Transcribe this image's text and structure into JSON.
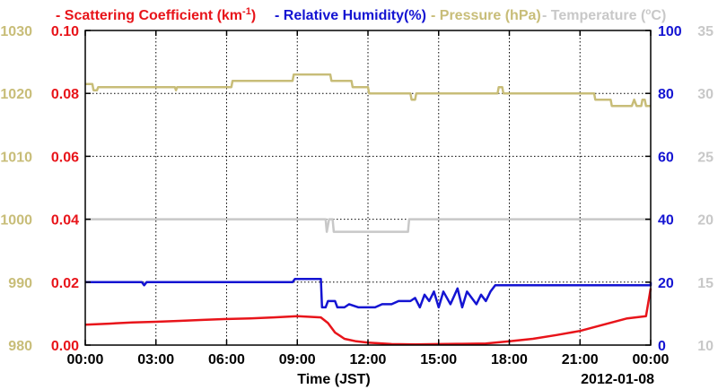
{
  "colors": {
    "scattering": "#e8141a",
    "humidity": "#1414d2",
    "pressure": "#c8bd78",
    "temperature": "#c8c8c8",
    "grid": "#000000",
    "frame": "#000000"
  },
  "legend": {
    "scattering_prefix": "- Scattering Coefficient (km",
    "scattering_sup": "-1",
    "scattering_suffix": ")",
    "humidity": "- Relative Humidity(%)",
    "pressure": "- Pressure (hPa)",
    "temperature": "- Temperature (",
    "temperature_unit": "C)"
  },
  "x_axis": {
    "label": "Time (JST)",
    "date": "2012-01-08",
    "ticks": [
      "00:00",
      "03:00",
      "06:00",
      "09:00",
      "12:00",
      "15:00",
      "18:00",
      "21:00",
      "00:00"
    ]
  },
  "y_axes": {
    "pressure_ticks": [
      "1030",
      "1020",
      "1010",
      "1000",
      "990",
      "980"
    ],
    "scattering_ticks": [
      "0.10",
      "0.08",
      "0.06",
      "0.04",
      "0.02",
      "0.00"
    ],
    "humidity_ticks": [
      "100",
      "80",
      "60",
      "40",
      "20",
      "0"
    ],
    "temperature_ticks": [
      "35",
      "30",
      "25",
      "20",
      "15",
      "10"
    ]
  },
  "chart_data": {
    "type": "line",
    "x_unit": "hours since 2012-01-08 00:00 JST",
    "xlim": [
      0,
      24
    ],
    "grid": true,
    "legend_placement": "top",
    "series": [
      {
        "name": "Scattering Coefficient (km-1)",
        "axis": "left-inner",
        "ylim": [
          0,
          0.1
        ],
        "points": [
          [
            0,
            0.0065
          ],
          [
            1,
            0.0068
          ],
          [
            2,
            0.0072
          ],
          [
            3,
            0.0074
          ],
          [
            4,
            0.0077
          ],
          [
            5,
            0.008
          ],
          [
            6,
            0.0083
          ],
          [
            7,
            0.0085
          ],
          [
            8,
            0.0088
          ],
          [
            9,
            0.0092
          ],
          [
            10,
            0.0088
          ],
          [
            10.3,
            0.007
          ],
          [
            10.6,
            0.004
          ],
          [
            11,
            0.002
          ],
          [
            11.5,
            0.0012
          ],
          [
            12,
            0.0008
          ],
          [
            13,
            0.0003
          ],
          [
            14,
            0.0002
          ],
          [
            15,
            0.0003
          ],
          [
            16,
            0.0004
          ],
          [
            17,
            0.0005
          ],
          [
            18,
            0.0012
          ],
          [
            19,
            0.002
          ],
          [
            20,
            0.0032
          ],
          [
            21,
            0.0045
          ],
          [
            22,
            0.0065
          ],
          [
            23,
            0.0085
          ],
          [
            23.8,
            0.0092
          ],
          [
            24,
            0.018
          ]
        ]
      },
      {
        "name": "Relative Humidity(%)",
        "axis": "right-inner",
        "ylim": [
          0,
          100
        ],
        "points": [
          [
            0,
            20
          ],
          [
            2.4,
            20
          ],
          [
            2.5,
            19
          ],
          [
            2.6,
            20
          ],
          [
            8.8,
            20
          ],
          [
            8.9,
            21
          ],
          [
            10.0,
            21
          ],
          [
            10.05,
            12
          ],
          [
            10.2,
            12
          ],
          [
            10.3,
            14
          ],
          [
            10.6,
            14
          ],
          [
            10.7,
            12
          ],
          [
            11,
            12
          ],
          [
            11.2,
            13
          ],
          [
            11.6,
            12
          ],
          [
            12,
            12
          ],
          [
            12.3,
            12
          ],
          [
            12.6,
            13
          ],
          [
            13,
            13
          ],
          [
            13.3,
            14
          ],
          [
            13.8,
            14
          ],
          [
            14,
            15
          ],
          [
            14.2,
            12
          ],
          [
            14.4,
            16
          ],
          [
            14.6,
            14
          ],
          [
            14.8,
            17
          ],
          [
            15,
            12
          ],
          [
            15.2,
            17
          ],
          [
            15.5,
            13
          ],
          [
            15.8,
            18
          ],
          [
            16,
            12
          ],
          [
            16.2,
            17
          ],
          [
            16.6,
            13
          ],
          [
            16.8,
            16
          ],
          [
            17,
            14
          ],
          [
            17.2,
            17
          ],
          [
            17.4,
            19
          ],
          [
            24,
            19
          ],
          [
            24,
            20
          ]
        ]
      },
      {
        "name": "Pressure (hPa)",
        "axis": "left-outer",
        "ylim": [
          980,
          1030
        ],
        "points": [
          [
            0,
            1021.5
          ],
          [
            0.3,
            1021.5
          ],
          [
            0.35,
            1020.5
          ],
          [
            0.5,
            1020.5
          ],
          [
            0.55,
            1021
          ],
          [
            3.8,
            1021
          ],
          [
            3.85,
            1020.5
          ],
          [
            3.9,
            1021
          ],
          [
            6.2,
            1021
          ],
          [
            6.25,
            1022
          ],
          [
            8.8,
            1022
          ],
          [
            8.85,
            1023
          ],
          [
            10.4,
            1023
          ],
          [
            10.45,
            1022
          ],
          [
            11.3,
            1022
          ],
          [
            11.35,
            1021
          ],
          [
            12.0,
            1021
          ],
          [
            12.05,
            1020
          ],
          [
            13.8,
            1020
          ],
          [
            13.85,
            1019
          ],
          [
            14.0,
            1019
          ],
          [
            14.05,
            1020
          ],
          [
            17.5,
            1020
          ],
          [
            17.55,
            1021
          ],
          [
            17.7,
            1021
          ],
          [
            17.75,
            1020
          ],
          [
            21.6,
            1020
          ],
          [
            21.65,
            1019
          ],
          [
            22.3,
            1019
          ],
          [
            22.35,
            1018
          ],
          [
            23.2,
            1018
          ],
          [
            23.3,
            1019
          ],
          [
            23.4,
            1018
          ],
          [
            23.6,
            1018
          ],
          [
            23.65,
            1019
          ],
          [
            23.75,
            1019
          ],
          [
            23.8,
            1018
          ],
          [
            24,
            1018
          ]
        ]
      },
      {
        "name": "Temperature (C)",
        "axis": "right-outer",
        "ylim": [
          10,
          35
        ],
        "points": [
          [
            0,
            20
          ],
          [
            10.2,
            20
          ],
          [
            10.25,
            19
          ],
          [
            10.35,
            20
          ],
          [
            10.5,
            20
          ],
          [
            10.55,
            19
          ],
          [
            13.7,
            19
          ],
          [
            13.75,
            20
          ],
          [
            24,
            20
          ]
        ]
      }
    ]
  }
}
